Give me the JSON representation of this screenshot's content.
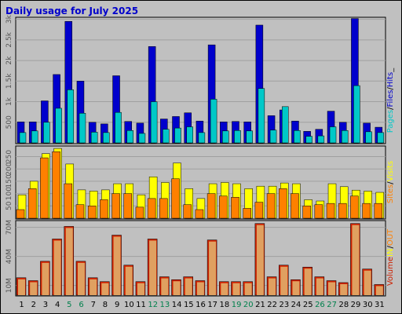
{
  "title": "Daily usage for July 2025",
  "colors": {
    "background": "#c0c0c0",
    "panel": "#c0c0c0",
    "grid": "#a0a0a0",
    "title": "#0000cc",
    "hits": "#0000cc",
    "files": "#0000cc",
    "pages": "#00c8c8",
    "visits": "#ffff00",
    "sites": "#ff8000",
    "kbytes": "#cc2000",
    "volume_in": "#ff8040",
    "volume_out": "#e0a060",
    "weekday_label": "#000000",
    "weekend_label": "#00804c"
  },
  "chart_data": [
    {
      "type": "bar",
      "panel": "top",
      "categories": [
        "1",
        "2",
        "3",
        "4",
        "5",
        "6",
        "7",
        "8",
        "9",
        "10",
        "11",
        "12",
        "13",
        "14",
        "15",
        "16",
        "17",
        "18",
        "19",
        "20",
        "21",
        "22",
        "23",
        "24",
        "25",
        "26",
        "27",
        "28",
        "29",
        "30",
        "31"
      ],
      "weekend_days": [
        "5",
        "6",
        "12",
        "13",
        "19",
        "20",
        "26",
        "27"
      ],
      "yticks": [
        "500",
        "1k",
        "1.5k",
        "2k",
        "2.5k",
        "3k"
      ],
      "ylim": [
        0,
        3050
      ],
      "legend": [
        "Pages",
        "/",
        "Files",
        "/",
        "Hits",
        "_"
      ],
      "series": [
        {
          "name": "Hits",
          "values": [
            510,
            510,
            1020,
            1660,
            2950,
            1500,
            500,
            460,
            1630,
            520,
            480,
            2340,
            580,
            640,
            730,
            530,
            2380,
            510,
            520,
            510,
            2860,
            660,
            800,
            530,
            280,
            330,
            770,
            500,
            3020,
            480,
            380
          ]
        },
        {
          "name": "Files",
          "values": [
            510,
            510,
            1020,
            1660,
            2950,
            1500,
            500,
            460,
            1630,
            520,
            480,
            2340,
            580,
            640,
            730,
            530,
            2380,
            510,
            520,
            510,
            2860,
            660,
            800,
            530,
            280,
            330,
            770,
            500,
            3020,
            480,
            380
          ]
        },
        {
          "name": "Pages",
          "values": [
            250,
            290,
            500,
            840,
            1290,
            720,
            260,
            250,
            740,
            300,
            230,
            1000,
            330,
            360,
            390,
            250,
            1060,
            290,
            300,
            290,
            1320,
            310,
            880,
            300,
            160,
            170,
            390,
            300,
            1390,
            270,
            250
          ]
        }
      ]
    },
    {
      "type": "bar",
      "panel": "middle",
      "categories": [
        "1",
        "2",
        "3",
        "4",
        "5",
        "6",
        "7",
        "8",
        "9",
        "10",
        "11",
        "12",
        "13",
        "14",
        "15",
        "16",
        "17",
        "18",
        "19",
        "20",
        "21",
        "22",
        "23",
        "24",
        "25",
        "26",
        "27",
        "28",
        "29",
        "30",
        "31"
      ],
      "yticks": [
        "50",
        "100",
        "150",
        "200",
        "250"
      ],
      "ylim": [
        0,
        293
      ],
      "legend": [
        "Sites",
        "/",
        "Visits"
      ],
      "series": [
        {
          "name": "Visits",
          "values": [
            95,
            150,
            262,
            283,
            220,
            115,
            110,
            115,
            140,
            140,
            95,
            168,
            145,
            224,
            120,
            80,
            140,
            145,
            140,
            120,
            130,
            130,
            143,
            140,
            75,
            70,
            140,
            128,
            114,
            110,
            105
          ]
        },
        {
          "name": "Sites",
          "values": [
            35,
            120,
            245,
            270,
            140,
            55,
            50,
            75,
            100,
            100,
            45,
            80,
            80,
            160,
            55,
            35,
            100,
            90,
            85,
            40,
            65,
            100,
            120,
            100,
            50,
            55,
            60,
            60,
            90,
            60,
            60
          ]
        }
      ]
    },
    {
      "type": "bar",
      "panel": "bottom",
      "categories": [
        "1",
        "2",
        "3",
        "4",
        "5",
        "6",
        "7",
        "8",
        "9",
        "10",
        "11",
        "12",
        "13",
        "14",
        "15",
        "16",
        "17",
        "18",
        "19",
        "20",
        "21",
        "22",
        "23",
        "24",
        "25",
        "26",
        "27",
        "28",
        "29",
        "30",
        "31"
      ],
      "yticks": [
        "10M",
        "40M",
        "70M"
      ],
      "ylim": [
        0,
        77
      ],
      "legend": [
        "Volume",
        "",
        "IN",
        "/",
        "OUT"
      ],
      "series": [
        {
          "name": "Volume",
          "values": [
            18,
            15,
            35,
            58,
            71,
            35,
            18,
            14,
            62,
            31,
            14,
            58,
            19,
            16,
            19,
            15,
            57,
            14,
            14,
            14,
            74,
            19,
            31,
            16,
            29,
            19,
            15,
            13,
            74,
            27,
            11
          ]
        }
      ]
    }
  ]
}
